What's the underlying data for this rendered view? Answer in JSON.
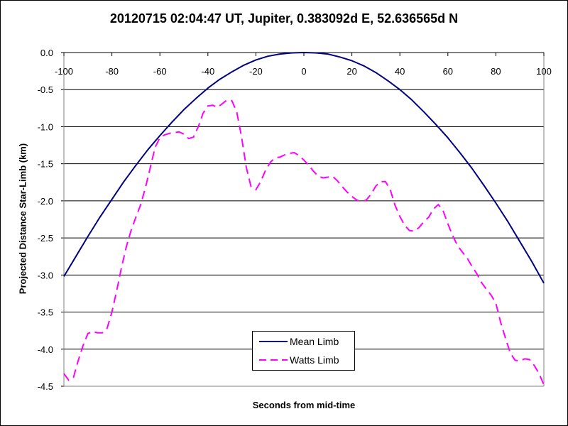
{
  "chart_data": {
    "type": "line",
    "title": "20120715 02:04:47 UT, Jupiter, 0.383092d E, 52.636565d N",
    "xlabel": "Seconds from mid-time",
    "ylabel": "Projected Distance Star-Limb (km)",
    "xlim": [
      -100,
      100
    ],
    "ylim": [
      -4.5,
      0.0
    ],
    "x_ticks": [
      "-100",
      "-80",
      "-60",
      "-40",
      "-20",
      "0",
      "20",
      "40",
      "60",
      "80",
      "100"
    ],
    "y_ticks": [
      "0.0",
      "-0.5",
      "-1.0",
      "-1.5",
      "-2.0",
      "-2.5",
      "-3.0",
      "-3.5",
      "-4.0",
      "-4.5"
    ],
    "grid": "horizontal major gridlines",
    "legend_position": "bottom-center",
    "series": [
      {
        "name": "Mean Limb",
        "color": "#000080",
        "style": "solid",
        "x": [
          -100,
          -95,
          -90,
          -85,
          -80,
          -75,
          -70,
          -65,
          -60,
          -55,
          -50,
          -45,
          -40,
          -35,
          -30,
          -25,
          -20,
          -15,
          -10,
          -5,
          0,
          5,
          10,
          15,
          20,
          25,
          30,
          35,
          40,
          45,
          50,
          55,
          60,
          65,
          70,
          75,
          80,
          85,
          90,
          95,
          100
        ],
        "y": [
          -3.02,
          -2.75,
          -2.48,
          -2.22,
          -1.98,
          -1.74,
          -1.52,
          -1.31,
          -1.12,
          -0.94,
          -0.77,
          -0.62,
          -0.48,
          -0.36,
          -0.26,
          -0.17,
          -0.1,
          -0.05,
          -0.02,
          -0.005,
          0.0,
          -0.005,
          -0.02,
          -0.06,
          -0.11,
          -0.18,
          -0.27,
          -0.38,
          -0.5,
          -0.64,
          -0.8,
          -0.97,
          -1.15,
          -1.35,
          -1.56,
          -1.79,
          -2.03,
          -2.28,
          -2.55,
          -2.82,
          -3.11
        ]
      },
      {
        "name": "Watts Limb",
        "color": "#FF00FF",
        "style": "dashed",
        "x": [
          -100,
          -98,
          -96,
          -94,
          -92,
          -90,
          -88,
          -86,
          -84,
          -82,
          -80,
          -78,
          -76,
          -74,
          -72,
          -70,
          -68,
          -66,
          -64,
          -62,
          -60,
          -58,
          -56,
          -54,
          -52,
          -50,
          -48,
          -46,
          -44,
          -42,
          -40,
          -38,
          -36,
          -34,
          -32,
          -30,
          -28,
          -26,
          -24,
          -22,
          -20,
          -18,
          -16,
          -14,
          -12,
          -10,
          -8,
          -6,
          -4,
          -2,
          0,
          2,
          4,
          6,
          8,
          10,
          12,
          14,
          16,
          18,
          20,
          22,
          24,
          26,
          28,
          30,
          32,
          34,
          36,
          38,
          40,
          42,
          44,
          46,
          48,
          50,
          52,
          54,
          56,
          58,
          60,
          62,
          64,
          66,
          68,
          70,
          72,
          74,
          76,
          78,
          80,
          82,
          84,
          86,
          88,
          90,
          92,
          94,
          96,
          98,
          100
        ],
        "y": [
          -4.33,
          -4.42,
          -4.38,
          -4.15,
          -3.95,
          -3.79,
          -3.76,
          -3.78,
          -3.78,
          -3.72,
          -3.5,
          -3.21,
          -2.9,
          -2.62,
          -2.4,
          -2.22,
          -2.05,
          -1.82,
          -1.55,
          -1.28,
          -1.15,
          -1.11,
          -1.09,
          -1.08,
          -1.07,
          -1.1,
          -1.16,
          -1.14,
          -1.0,
          -0.82,
          -0.72,
          -0.71,
          -0.74,
          -0.69,
          -0.64,
          -0.65,
          -0.8,
          -1.13,
          -1.55,
          -1.81,
          -1.85,
          -1.74,
          -1.59,
          -1.48,
          -1.42,
          -1.41,
          -1.38,
          -1.36,
          -1.35,
          -1.39,
          -1.45,
          -1.52,
          -1.6,
          -1.67,
          -1.69,
          -1.68,
          -1.67,
          -1.73,
          -1.81,
          -1.88,
          -1.94,
          -1.99,
          -2.01,
          -1.99,
          -1.91,
          -1.8,
          -1.74,
          -1.74,
          -1.85,
          -2.06,
          -2.21,
          -2.33,
          -2.4,
          -2.41,
          -2.36,
          -2.28,
          -2.22,
          -2.11,
          -2.05,
          -2.13,
          -2.31,
          -2.47,
          -2.6,
          -2.69,
          -2.77,
          -2.88,
          -2.98,
          -3.1,
          -3.19,
          -3.27,
          -3.38,
          -3.64,
          -3.85,
          -4.05,
          -4.15,
          -4.16,
          -4.13,
          -4.14,
          -4.22,
          -4.33,
          -4.48
        ]
      }
    ]
  }
}
